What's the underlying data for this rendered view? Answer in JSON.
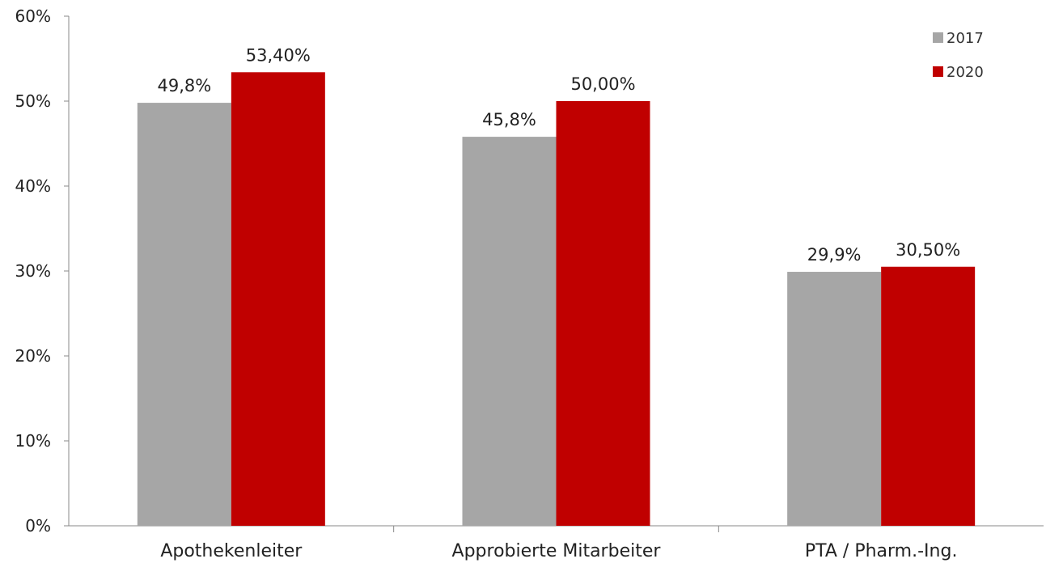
{
  "chart_data": {
    "type": "bar",
    "title": "",
    "xlabel": "",
    "ylabel": "",
    "ylim": [
      0,
      60
    ],
    "yticks": [
      "0%",
      "10%",
      "20%",
      "30%",
      "40%",
      "50%",
      "60%"
    ],
    "categories": [
      "Apothekenleiter",
      "Approbierte Mitarbeiter",
      "PTA / Pharm.-Ing."
    ],
    "series": [
      {
        "name": "2017",
        "color": "#a6a6a6",
        "values": [
          49.8,
          45.8,
          29.9
        ],
        "labels": [
          "49,8%",
          "45,8%",
          "29,9%"
        ]
      },
      {
        "name": "2020",
        "color": "#c00000",
        "values": [
          53.4,
          50.0,
          30.5
        ],
        "labels": [
          "53,40%",
          "50,00%",
          "30,50%"
        ]
      }
    ],
    "grid": false,
    "legend": "top-right"
  }
}
